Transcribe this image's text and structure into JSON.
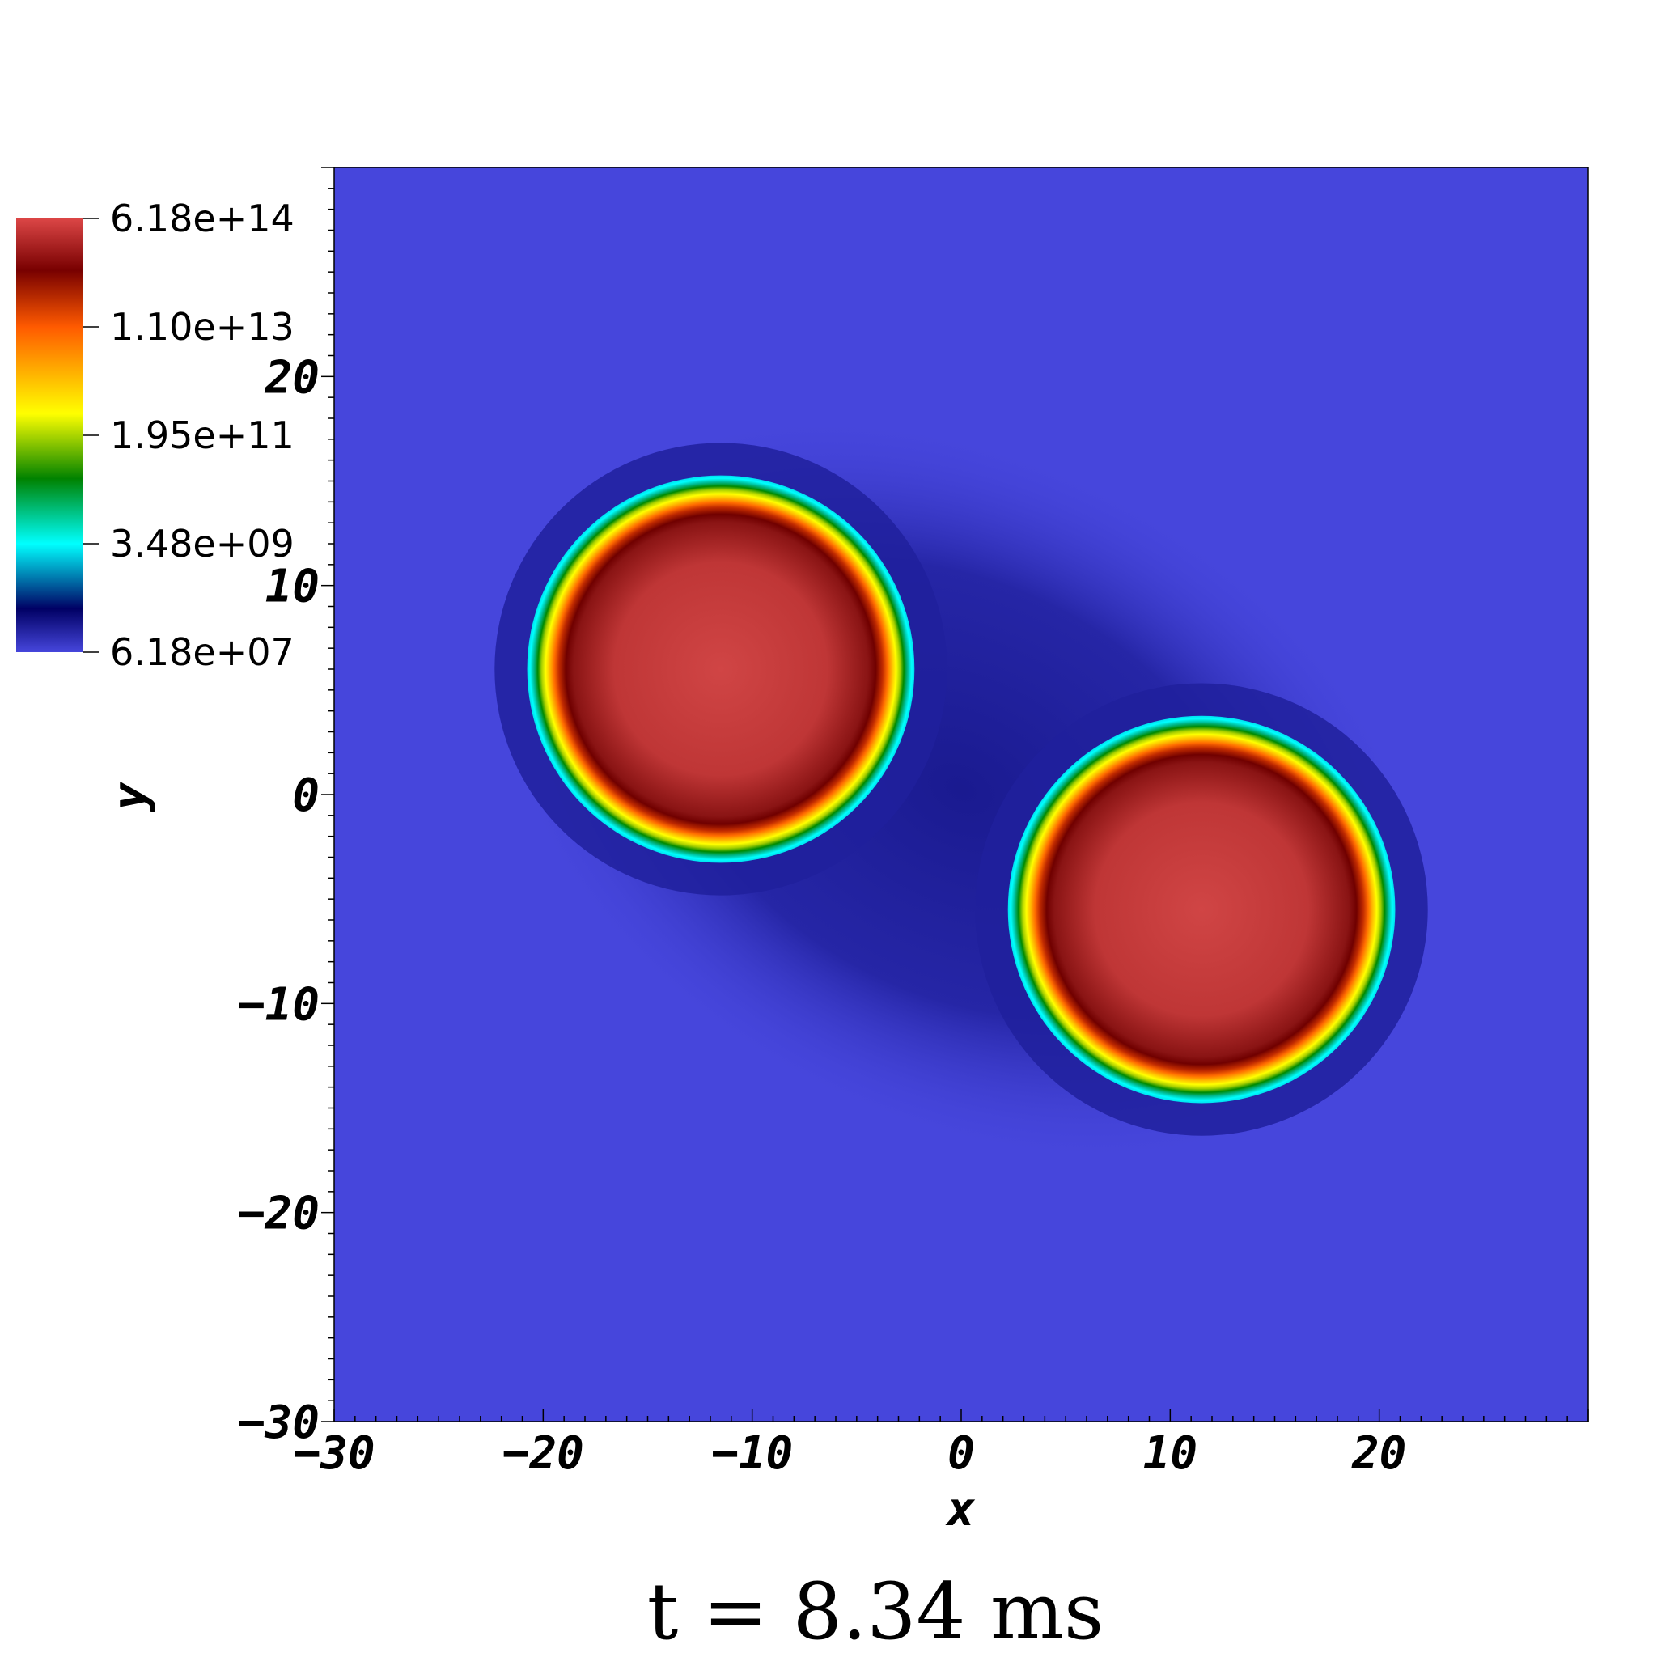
{
  "chart_data": {
    "type": "heatmap",
    "xlabel": "x",
    "ylabel": "y",
    "xlim": [
      -30,
      30
    ],
    "ylim": [
      -30,
      30
    ],
    "x_ticks": [
      -30,
      -20,
      -10,
      0,
      10,
      20
    ],
    "y_ticks": [
      -30,
      -20,
      -10,
      0,
      10,
      20
    ],
    "x_tick_labels": [
      "−30",
      "−20",
      "−10",
      "0",
      "10",
      "20"
    ],
    "y_tick_labels": [
      "−30",
      "−20",
      "−10",
      "0",
      "10",
      "20"
    ],
    "colorbar": {
      "scale": "log",
      "tick_labels": [
        "6.18e+14",
        "1.10e+13",
        "1.95e+11",
        "3.48e+09",
        "6.18e+07"
      ],
      "tick_values": [
        618000000000000.0,
        11000000000000.0,
        195000000000.0,
        3480000000.0,
        61800000.0
      ],
      "colormap": [
        "#4646dc",
        "#000064",
        "#00ffff",
        "#008200",
        "#ffff00",
        "#ff5a00",
        "#780000",
        "#dc4646"
      ]
    },
    "background_color": "#4646dc",
    "features": [
      {
        "center_x": -11.5,
        "center_y": 6.0,
        "radius": 8.2,
        "level_color": "#d04040"
      },
      {
        "center_x": 11.5,
        "center_y": -5.5,
        "radius": 8.2,
        "level_color": "#d04040"
      }
    ]
  },
  "annotation": {
    "time_label": "t = 8.34 ms"
  }
}
